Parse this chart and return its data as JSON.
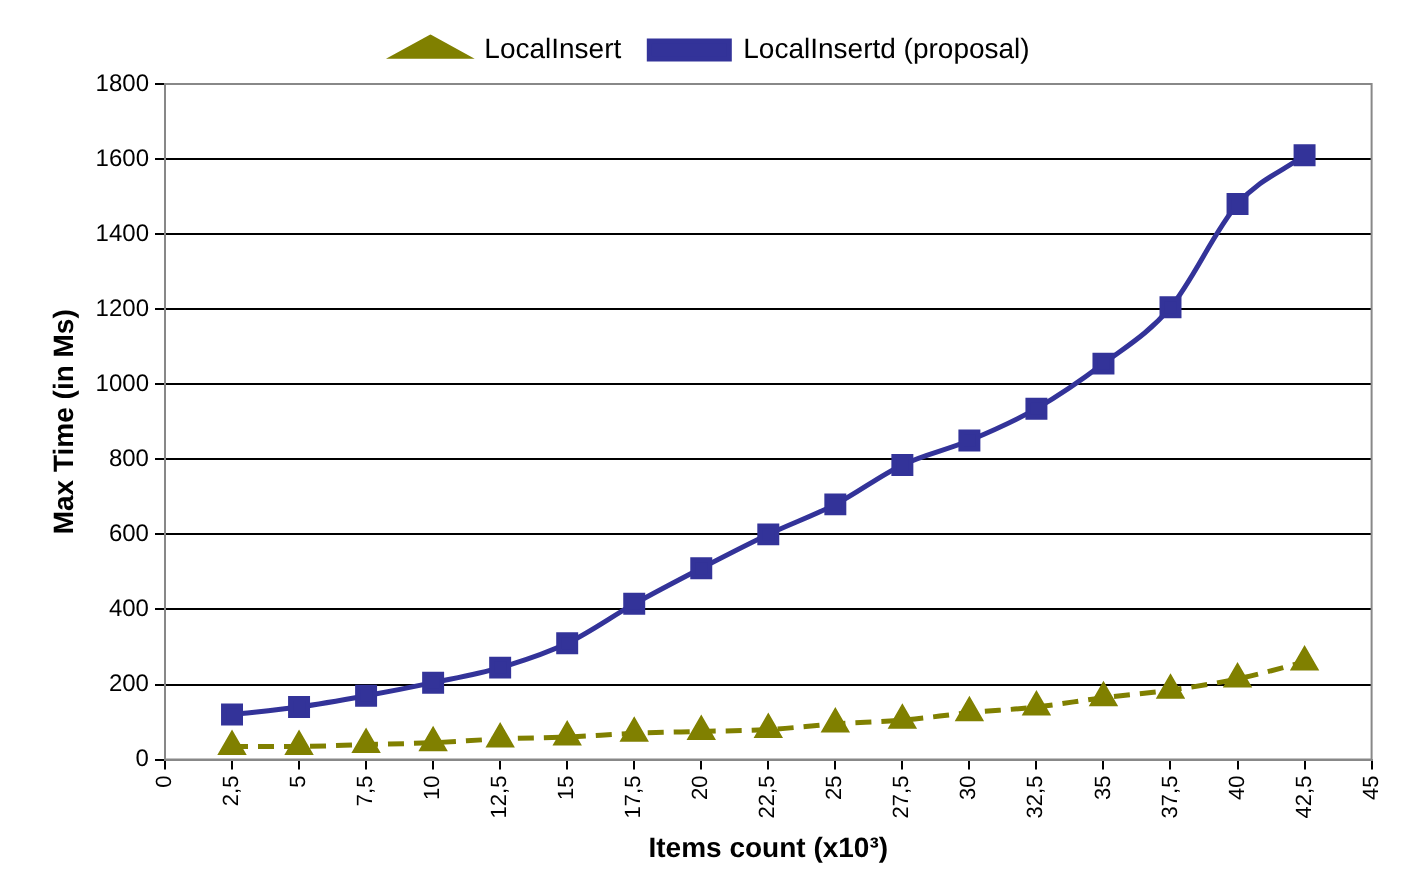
{
  "chart_data": {
    "type": "line",
    "xlabel": "Items count (x10³)",
    "ylabel": "Max Time (in Ms)",
    "x": [
      2.5,
      5,
      7.5,
      10,
      12.5,
      15,
      17.5,
      20,
      22.5,
      25,
      27.5,
      30,
      32.5,
      35,
      37.5,
      40,
      42.5
    ],
    "series": [
      {
        "name": "LocalInsert",
        "color": "#808000",
        "marker": "triangle",
        "line_style": "dashed",
        "values": [
          35,
          35,
          40,
          45,
          55,
          60,
          70,
          75,
          80,
          95,
          105,
          125,
          140,
          165,
          185,
          215,
          260
        ]
      },
      {
        "name": "LocalInsertd (proposal)",
        "color": "#333399",
        "marker": "square",
        "line_style": "solid",
        "values": [
          120,
          140,
          170,
          205,
          245,
          310,
          415,
          510,
          600,
          680,
          785,
          850,
          935,
          1055,
          1205,
          1480,
          1610
        ]
      }
    ],
    "xlim": [
      0,
      45
    ],
    "xticks": [
      0,
      {
        "value": 2.5,
        "label": "2,5"
      },
      5,
      {
        "value": 7.5,
        "label": "7,5"
      },
      10,
      {
        "value": 12.5,
        "label": "12,5"
      },
      15,
      {
        "value": 17.5,
        "label": "17,5"
      },
      20,
      {
        "value": 22.5,
        "label": "22,5"
      },
      25,
      {
        "value": 27.5,
        "label": "27,5"
      },
      30,
      {
        "value": 32.5,
        "label": "32,5"
      },
      35,
      {
        "value": 37.5,
        "label": "37,5"
      },
      40,
      {
        "value": 42.5,
        "label": "42,5"
      },
      45
    ],
    "ylim": [
      0,
      1800
    ],
    "yticks": [
      0,
      200,
      400,
      600,
      800,
      1000,
      1200,
      1400,
      1600,
      1800
    ],
    "grid": "y",
    "legend": "top"
  }
}
